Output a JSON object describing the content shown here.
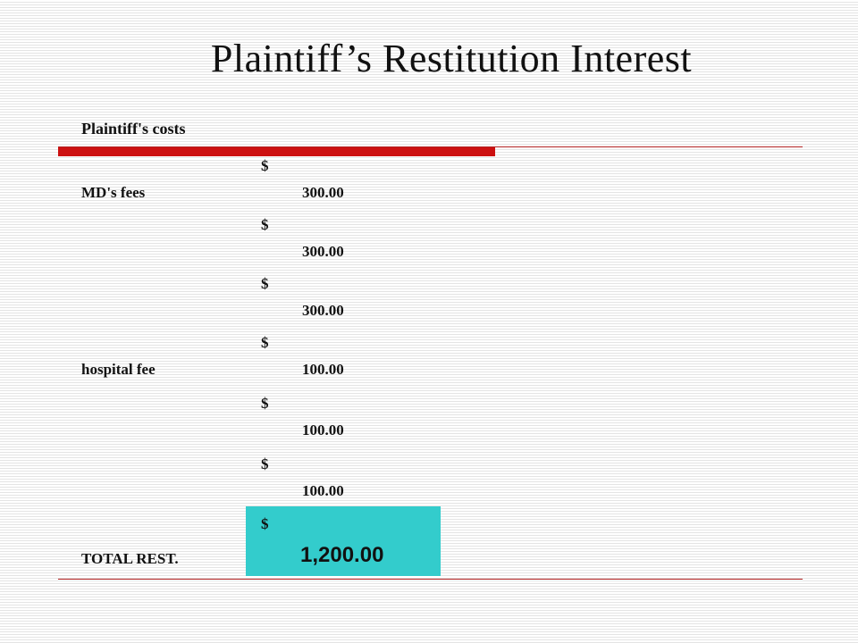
{
  "title": "Plaintiff’s Restitution Interest",
  "section_label": "Plaintiff's costs",
  "rows": [
    {
      "label": "MD's fees",
      "currency": "$",
      "amount": "300.00"
    },
    {
      "label": "",
      "currency": "$",
      "amount": "300.00"
    },
    {
      "label": "",
      "currency": "$",
      "amount": "300.00"
    },
    {
      "label": "hospital fee",
      "currency": "$",
      "amount": "100.00"
    },
    {
      "label": "",
      "currency": "$",
      "amount": "100.00"
    },
    {
      "label": "",
      "currency": "$",
      "amount": "100.00"
    }
  ],
  "total": {
    "label": "TOTAL REST.",
    "currency": "$",
    "amount": "1,200.00"
  },
  "colors": {
    "accent_bar": "#cc1010",
    "total_highlight": "#33cccc",
    "rule": "#b22222"
  }
}
